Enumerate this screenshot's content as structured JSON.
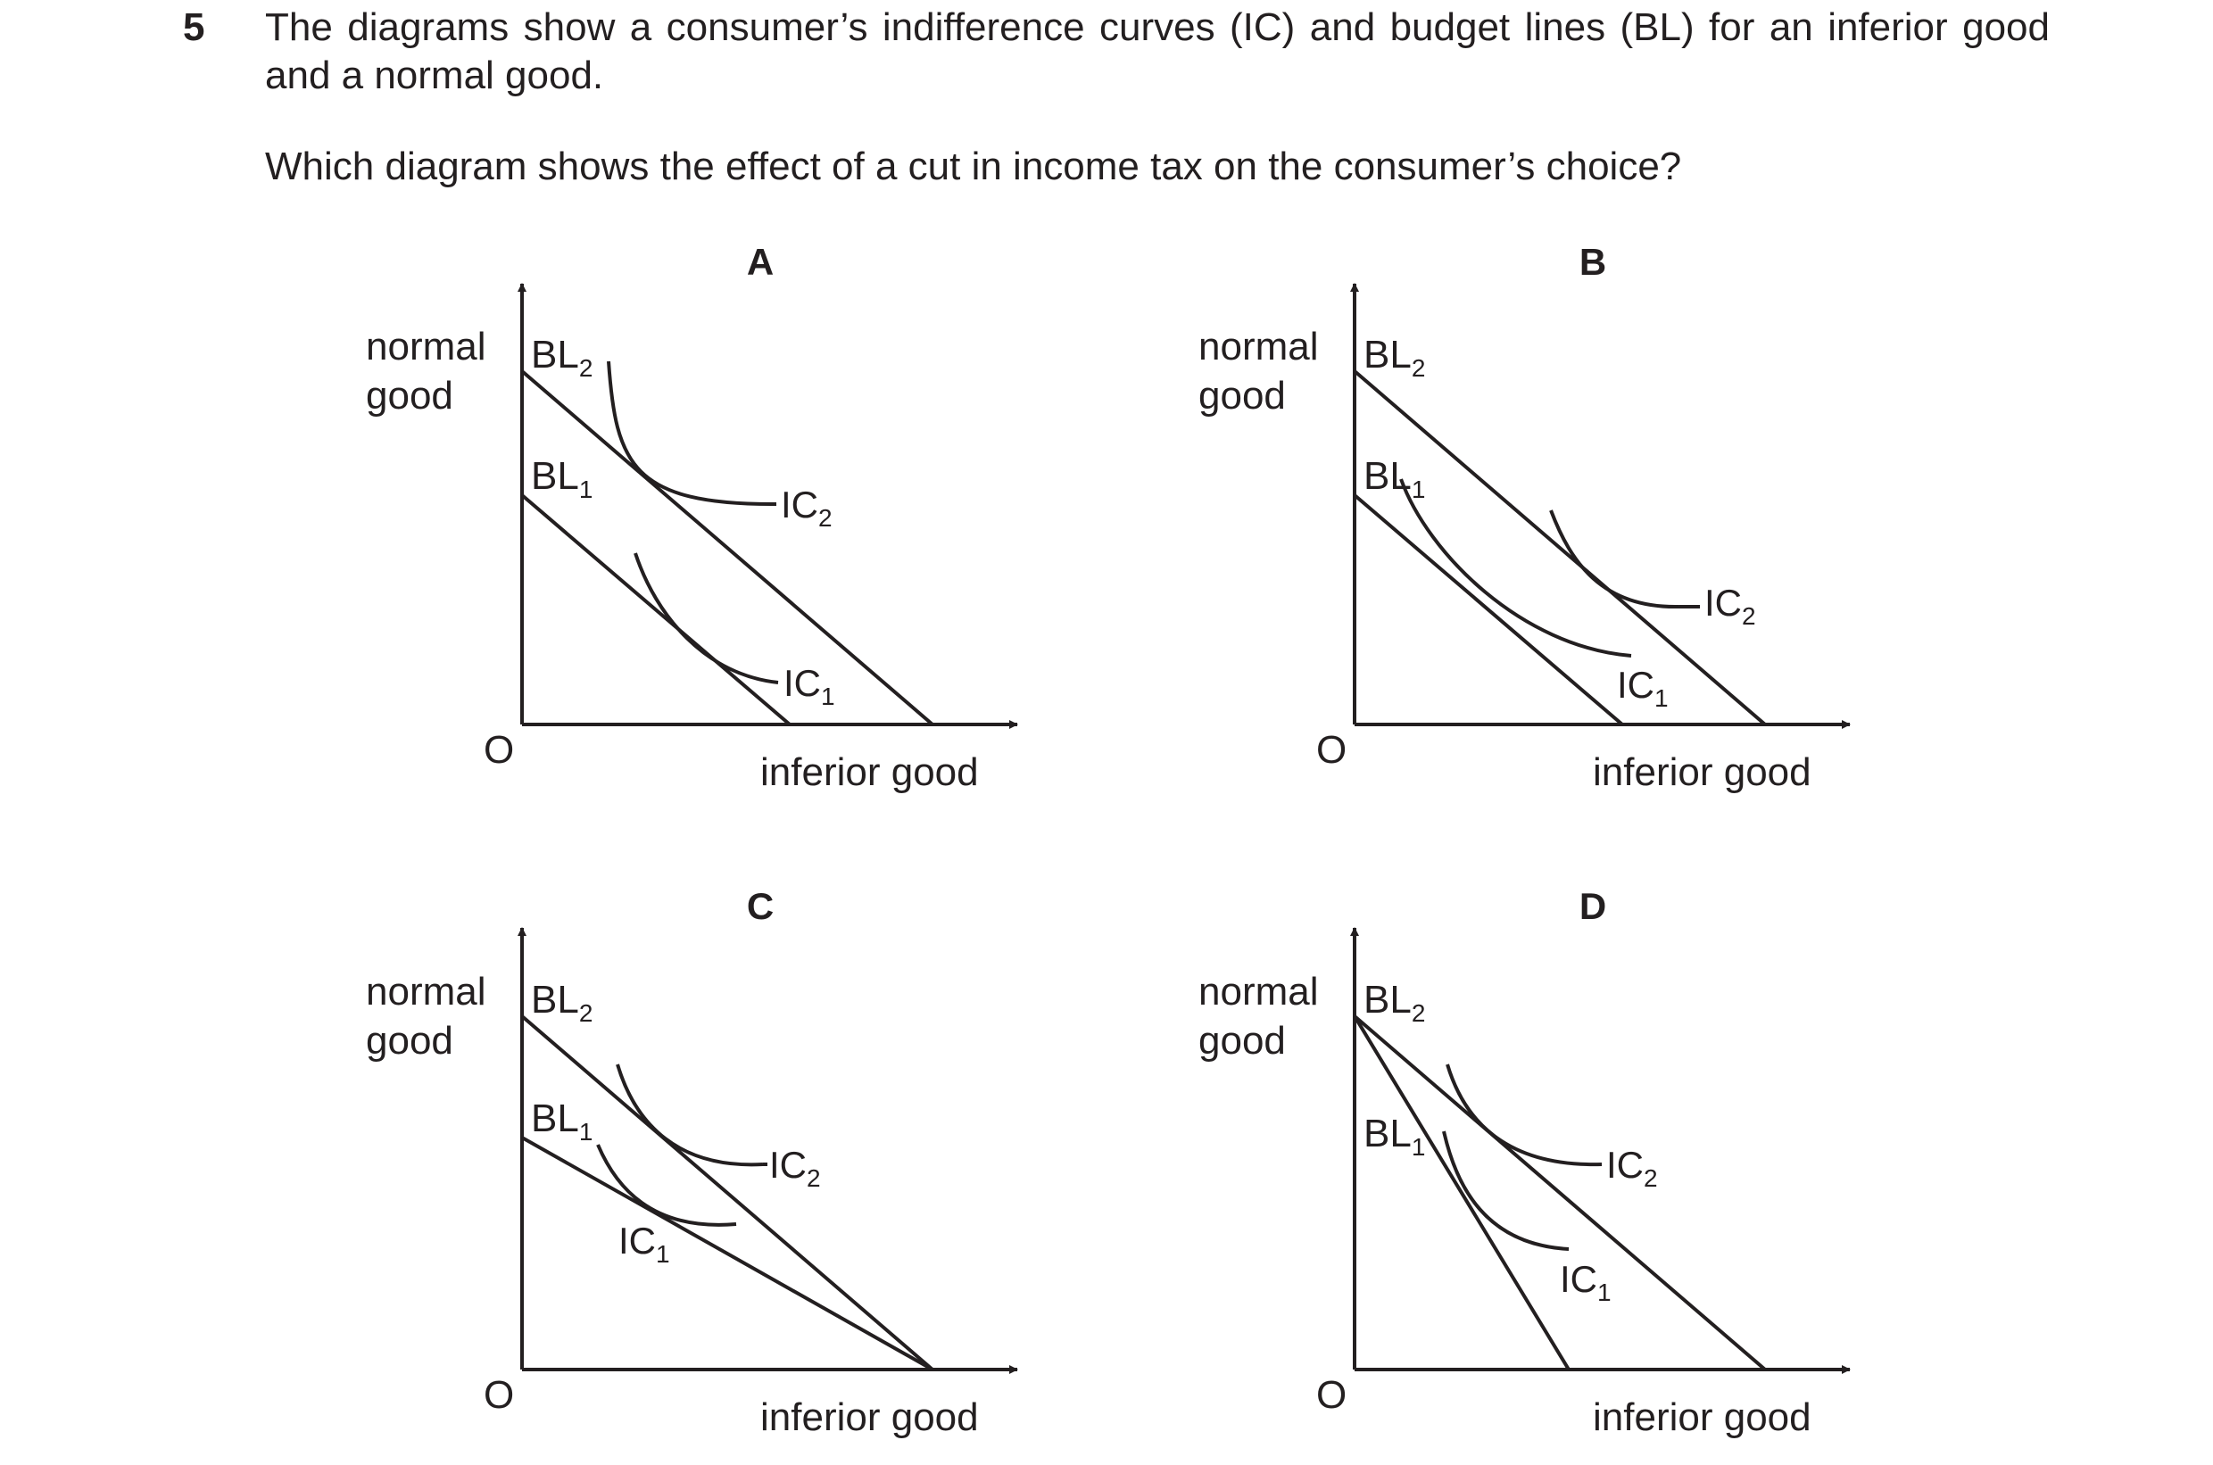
{
  "question": {
    "number": "5",
    "text": "The diagrams show a consumer’s indifference curves (IC) and budget lines (BL) for an inferior good and a normal good.",
    "prompt": "Which diagram shows the effect of a cut in income tax on the consumer’s choice?"
  },
  "labels": {
    "y_axis_line1": "normal",
    "y_axis_line2": "good",
    "x_axis": "inferior good",
    "origin": "O",
    "bl": "BL",
    "ic": "IC",
    "sub1": "1",
    "sub2": "2"
  },
  "options": [
    "A",
    "B",
    "C",
    "D"
  ]
}
